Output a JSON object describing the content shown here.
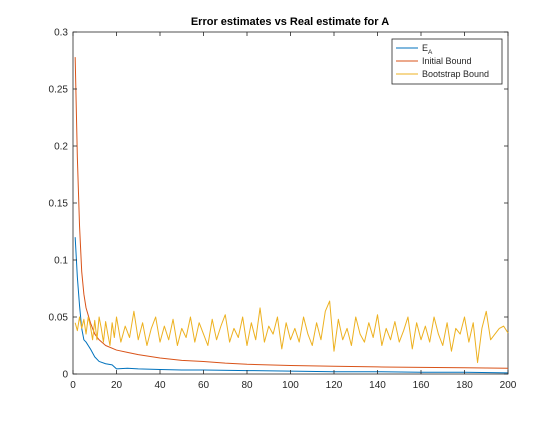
{
  "chart_data": {
    "type": "line",
    "title": "Error estimates vs Real estimate for A",
    "xlabel": "",
    "ylabel": "",
    "xlim": [
      0,
      200
    ],
    "ylim": [
      0,
      0.3
    ],
    "xticks": [
      "0",
      "20",
      "40",
      "60",
      "80",
      "100",
      "120",
      "140",
      "160",
      "180",
      "200"
    ],
    "yticks": [
      "0",
      "0.05",
      "0.1",
      "0.15",
      "0.2",
      "0.25",
      "0.3"
    ],
    "grid": false,
    "legend_position": "top-right",
    "series": [
      {
        "name": "E",
        "name_subscript": "A",
        "color": "#0072BD",
        "x": [
          1,
          2,
          3,
          4,
          5,
          6,
          7,
          8,
          10,
          12,
          15,
          18,
          20,
          25,
          30,
          40,
          50,
          60,
          80,
          100,
          120,
          140,
          160,
          180,
          200
        ],
        "y": [
          0.12,
          0.085,
          0.06,
          0.04,
          0.03,
          0.028,
          0.025,
          0.022,
          0.015,
          0.011,
          0.009,
          0.008,
          0.0045,
          0.005,
          0.0045,
          0.004,
          0.0035,
          0.0035,
          0.003,
          0.0025,
          0.002,
          0.002,
          0.0015,
          0.0015,
          0.001
        ]
      },
      {
        "name": "Initial Bound",
        "color": "#D95319",
        "x": [
          1,
          2,
          3,
          4,
          5,
          6,
          8,
          10,
          12,
          15,
          20,
          25,
          30,
          40,
          50,
          60,
          70,
          80,
          100,
          120,
          140,
          160,
          180,
          200
        ],
        "y": [
          0.278,
          0.19,
          0.13,
          0.09,
          0.07,
          0.058,
          0.045,
          0.035,
          0.03,
          0.025,
          0.021,
          0.019,
          0.017,
          0.014,
          0.012,
          0.011,
          0.0095,
          0.0085,
          0.0075,
          0.0068,
          0.0062,
          0.0058,
          0.0055,
          0.005
        ]
      },
      {
        "name": "Bootstrap Bound",
        "color": "#EDB120",
        "x": [
          1,
          2,
          3,
          4,
          5,
          6,
          7,
          8,
          9,
          10,
          11,
          12,
          13,
          14,
          15,
          16,
          17,
          18,
          19,
          20,
          22,
          24,
          26,
          28,
          30,
          32,
          34,
          36,
          38,
          40,
          42,
          44,
          46,
          48,
          50,
          52,
          54,
          56,
          58,
          60,
          62,
          64,
          66,
          68,
          70,
          72,
          74,
          76,
          78,
          80,
          82,
          84,
          86,
          88,
          90,
          92,
          94,
          96,
          98,
          100,
          102,
          104,
          106,
          108,
          110,
          112,
          114,
          116,
          118,
          120,
          122,
          124,
          126,
          128,
          130,
          132,
          134,
          136,
          138,
          140,
          142,
          144,
          146,
          148,
          150,
          152,
          154,
          156,
          158,
          160,
          162,
          164,
          166,
          168,
          170,
          172,
          174,
          176,
          178,
          180,
          182,
          184,
          186,
          188,
          190,
          192,
          194,
          196,
          198,
          200
        ],
        "y": [
          0.045,
          0.038,
          0.05,
          0.04,
          0.048,
          0.035,
          0.05,
          0.042,
          0.03,
          0.047,
          0.03,
          0.05,
          0.04,
          0.028,
          0.046,
          0.035,
          0.025,
          0.045,
          0.032,
          0.05,
          0.028,
          0.042,
          0.032,
          0.055,
          0.03,
          0.045,
          0.025,
          0.04,
          0.05,
          0.028,
          0.042,
          0.03,
          0.048,
          0.025,
          0.04,
          0.032,
          0.05,
          0.028,
          0.045,
          0.035,
          0.025,
          0.048,
          0.03,
          0.042,
          0.052,
          0.028,
          0.04,
          0.032,
          0.05,
          0.025,
          0.045,
          0.03,
          0.058,
          0.028,
          0.042,
          0.035,
          0.05,
          0.022,
          0.045,
          0.03,
          0.04,
          0.028,
          0.05,
          0.035,
          0.025,
          0.045,
          0.03,
          0.055,
          0.064,
          0.02,
          0.048,
          0.03,
          0.04,
          0.025,
          0.05,
          0.035,
          0.028,
          0.045,
          0.032,
          0.052,
          0.025,
          0.04,
          0.03,
          0.046,
          0.028,
          0.038,
          0.05,
          0.022,
          0.045,
          0.03,
          0.042,
          0.028,
          0.05,
          0.035,
          0.025,
          0.045,
          0.02,
          0.04,
          0.035,
          0.05,
          0.028,
          0.045,
          0.01,
          0.04,
          0.055,
          0.03,
          0.035,
          0.04,
          0.042,
          0.036
        ]
      }
    ]
  }
}
